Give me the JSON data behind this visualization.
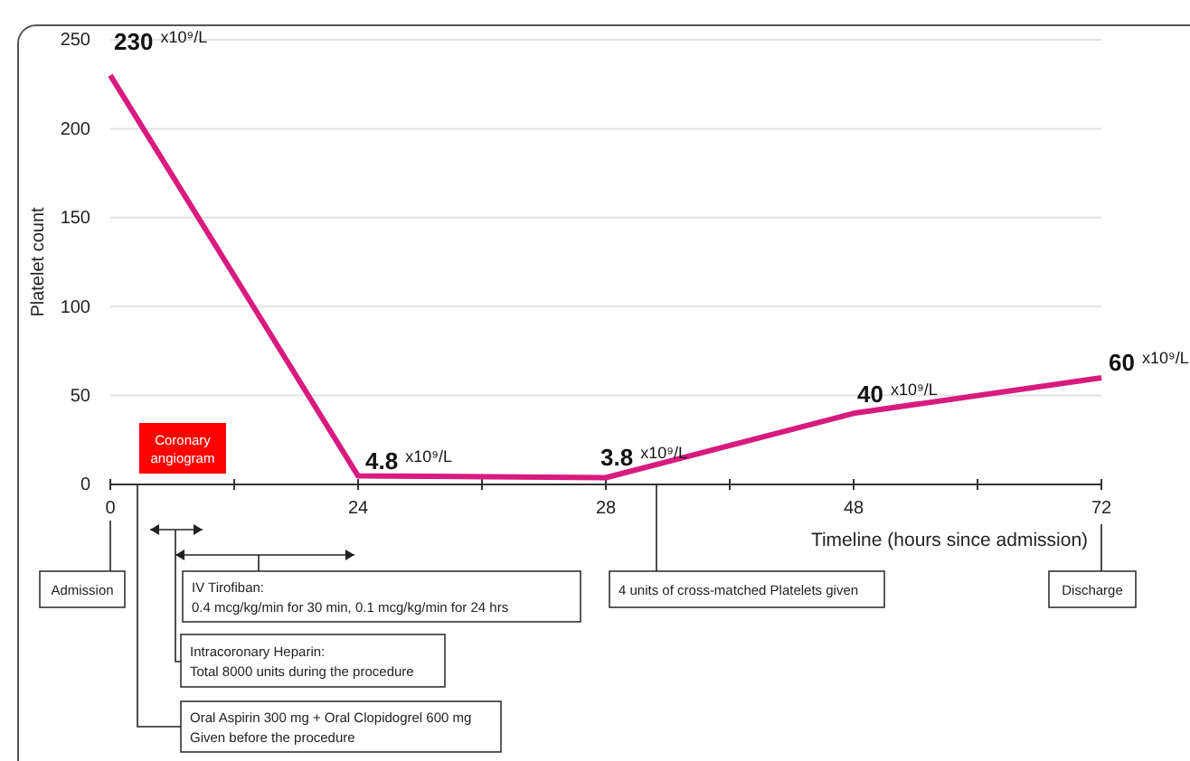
{
  "chart_data": {
    "type": "line",
    "ylabel": "Platelet count",
    "xlabel": "Timeline (hours since admission)",
    "categories": [
      "0",
      "24",
      "28",
      "48",
      "72"
    ],
    "series": [
      {
        "color": "#d81b7f",
        "values": [
          230,
          4.8,
          3.8,
          40,
          60
        ],
        "value_labels": [
          "230 $^{x10⁹/L}$",
          "4.8 $^{x10⁹/L}$",
          "3.8 $^{x10⁹/L}$",
          "40 $^{x10⁹/L}$",
          "60 $^{x10⁹/L}$"
        ]
      }
    ],
    "ylim": [
      0,
      250
    ],
    "yticks": [
      0,
      50,
      100,
      150,
      200,
      250
    ],
    "grid": "y",
    "marker": "none",
    "line_style": "solid",
    "annotations": [
      "Coronary angiogram",
      "Admission",
      "IV Tirofiban:\n0.4 mcg/kg/min for 30 min, 0.1 mcg/kg/min for 24 hrs",
      "Intracoronary Heparin:\nTotal 8000 units during the procedure",
      "Oral Aspirin 300 mg + Oral Clopidogrel 600 mg\nGiven before the procedure",
      "4 units of cross-matched Platelets given",
      "Discharge"
    ]
  }
}
